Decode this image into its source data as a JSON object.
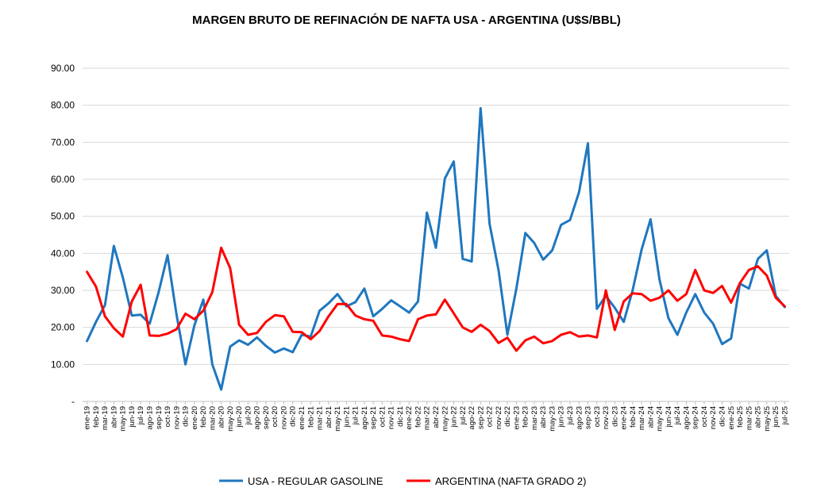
{
  "chart_data": {
    "type": "line",
    "title": "MARGEN BRUTO DE REFINACIÓN DE NAFTA USA - ARGENTINA (U$S/BBL)",
    "xlabel": "",
    "ylabel": "",
    "ylim": [
      0,
      90
    ],
    "y_ticks": [
      "-",
      "10.00",
      "20.00",
      "30.00",
      "40.00",
      "50.00",
      "60.00",
      "70.00",
      "80.00",
      "90.00"
    ],
    "grid": true,
    "legend_position": "bottom",
    "categories": [
      "ene-19",
      "feb-19",
      "mar-19",
      "abr-19",
      "may-19",
      "jun-19",
      "jul-19",
      "ago-19",
      "sep-19",
      "oct-19",
      "nov-19",
      "dic-19",
      "ene-20",
      "feb-20",
      "mar-20",
      "abr-20",
      "may-20",
      "jun-20",
      "jul-20",
      "ago-20",
      "sep-20",
      "oct-20",
      "nov-20",
      "dic-20",
      "ene-21",
      "feb-21",
      "mar-21",
      "abr-21",
      "may-21",
      "jun-21",
      "jul-21",
      "ago-21",
      "sep-21",
      "oct-21",
      "nov-21",
      "dic-21",
      "ene-22",
      "feb-22",
      "mar-22",
      "abr-22",
      "may-22",
      "jun-22",
      "jul-22",
      "ago-22",
      "sep-22",
      "oct-22",
      "nov-22",
      "dic-22",
      "ene-23",
      "feb-23",
      "mar-23",
      "abr-23",
      "may-23",
      "jun-23",
      "jul-23",
      "ago-23",
      "sep-23",
      "oct-23",
      "nov-23",
      "dic-23",
      "ene-24",
      "feb-24",
      "mar-24",
      "abr-24",
      "may-24",
      "jun-24",
      "jul-24",
      "ago-24",
      "sep-24",
      "oct-24",
      "nov-24",
      "dic-24",
      "ene-25",
      "feb-25",
      "mar-25",
      "abr-25",
      "may-25",
      "jun-25",
      "jul-25"
    ],
    "series": [
      {
        "name": "USA - REGULAR GASOLINE",
        "color": "#1f77bf",
        "values": [
          16.3,
          21.5,
          26.0,
          42.0,
          33.5,
          23.2,
          23.4,
          21.0,
          29.5,
          39.5,
          23.5,
          10.0,
          20.5,
          27.5,
          10.0,
          3.2,
          14.8,
          16.5,
          15.3,
          17.3,
          15.0,
          13.2,
          14.3,
          13.3,
          18.0,
          17.5,
          24.5,
          26.5,
          29.0,
          25.7,
          26.8,
          30.5,
          23.0,
          25.0,
          27.3,
          25.7,
          24.0,
          27.0,
          51.0,
          41.5,
          60.2,
          64.8,
          38.5,
          37.8,
          79.2,
          48.0,
          35.5,
          18.0,
          30.5,
          45.5,
          42.8,
          38.3,
          40.8,
          47.7,
          49.0,
          56.5,
          69.7,
          25.0,
          28.5,
          25.3,
          21.5,
          30.0,
          41.0,
          49.2,
          33.0,
          22.5,
          18.0,
          24.0,
          29.0,
          24.0,
          21.0,
          15.5,
          17.0,
          31.8,
          30.5,
          38.5,
          40.8,
          28.5,
          25.5
        ]
      },
      {
        "name": "ARGENTINA (NAFTA GRADO 2)",
        "color": "#ff0000",
        "values": [
          35.0,
          31.0,
          23.0,
          19.8,
          17.5,
          27.0,
          31.5,
          17.8,
          17.7,
          18.3,
          19.5,
          23.7,
          22.2,
          24.5,
          29.5,
          41.5,
          36.0,
          20.7,
          18.0,
          18.5,
          21.5,
          23.3,
          23.0,
          18.8,
          18.7,
          16.8,
          19.0,
          23.0,
          26.3,
          26.3,
          23.2,
          22.2,
          21.8,
          17.8,
          17.5,
          16.8,
          16.3,
          22.2,
          23.2,
          23.5,
          27.5,
          23.8,
          20.0,
          18.8,
          20.7,
          19.0,
          15.8,
          17.2,
          13.7,
          16.5,
          17.5,
          15.7,
          16.3,
          18.0,
          18.7,
          17.5,
          17.8,
          17.3,
          30.0,
          19.3,
          27.0,
          29.2,
          29.0,
          27.2,
          28.0,
          30.0,
          27.2,
          29.0,
          35.5,
          30.0,
          29.3,
          31.2,
          26.7,
          32.0,
          35.5,
          36.5,
          34.0,
          28.0,
          25.7
        ]
      }
    ]
  }
}
